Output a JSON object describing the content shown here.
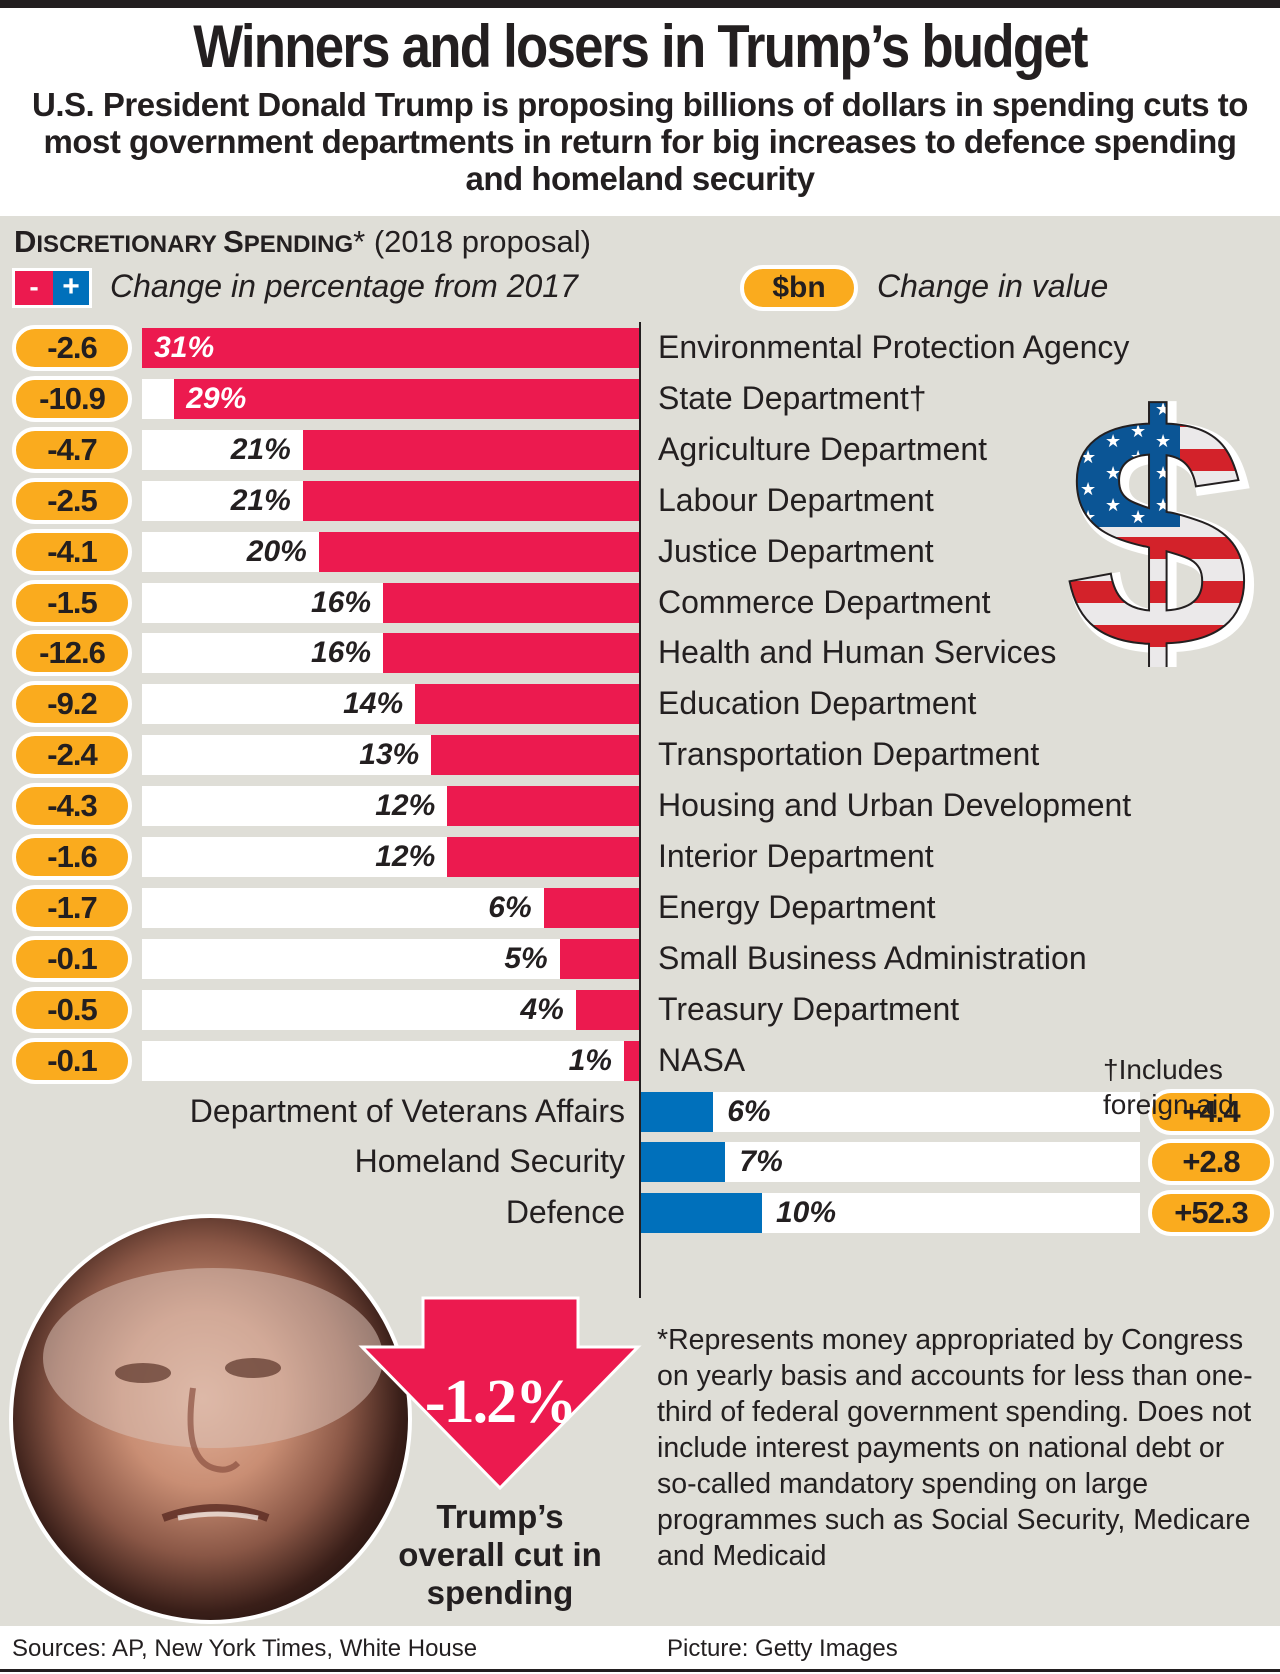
{
  "header": {
    "title": "Winners and losers in Trump’s budget",
    "subtitle": "U.S. President Donald Trump is proposing billions of dollars in spending cuts to most government departments in return for big increases to defence spending and homeland security"
  },
  "section": {
    "heading_d": "D",
    "heading_rest1": "ISCRETIONARY ",
    "heading_s": "S",
    "heading_rest2": "PENDING",
    "heading_suffix": "* (2018 proposal)"
  },
  "legend": {
    "minus": "-",
    "plus": "+",
    "pct_label": "Change in percentage from 2017",
    "value_pill": "$bn",
    "value_label": "Change in value"
  },
  "chart_data": {
    "type": "bar",
    "title": "Discretionary Spending* (2018 proposal)",
    "xlabel": "Change in percentage from 2017",
    "ylabel": "",
    "value_unit": "$bn",
    "series": [
      {
        "name": "Cuts",
        "color": "#ec1a4f",
        "items": [
          {
            "dept": "Environmental Protection Agency",
            "pct": -31,
            "pct_label": "31%",
            "bn": "-2.6"
          },
          {
            "dept": "State Department†",
            "pct": -29,
            "pct_label": "29%",
            "bn": "-10.9"
          },
          {
            "dept": "Agriculture Department",
            "pct": -21,
            "pct_label": "21%",
            "bn": "-4.7"
          },
          {
            "dept": "Labour Department",
            "pct": -21,
            "pct_label": "21%",
            "bn": "-2.5"
          },
          {
            "dept": "Justice Department",
            "pct": -20,
            "pct_label": "20%",
            "bn": "-4.1"
          },
          {
            "dept": "Commerce Department",
            "pct": -16,
            "pct_label": "16%",
            "bn": "-1.5"
          },
          {
            "dept": "Health and Human Services",
            "pct": -16,
            "pct_label": "16%",
            "bn": "-12.6"
          },
          {
            "dept": "Education Department",
            "pct": -14,
            "pct_label": "14%",
            "bn": "-9.2"
          },
          {
            "dept": "Transportation Department",
            "pct": -13,
            "pct_label": "13%",
            "bn": "-2.4"
          },
          {
            "dept": "Housing and Urban Development",
            "pct": -12,
            "pct_label": "12%",
            "bn": "-4.3"
          },
          {
            "dept": "Interior Department",
            "pct": -12,
            "pct_label": "12%",
            "bn": "-1.6"
          },
          {
            "dept": "Energy Department",
            "pct": -6,
            "pct_label": "6%",
            "bn": "-1.7"
          },
          {
            "dept": "Small Business Administration",
            "pct": -5,
            "pct_label": "5%",
            "bn": "-0.1"
          },
          {
            "dept": "Treasury Department",
            "pct": -4,
            "pct_label": "4%",
            "bn": "-0.5"
          },
          {
            "dept": "NASA",
            "pct": -1,
            "pct_label": "1%",
            "bn": "-0.1"
          }
        ]
      },
      {
        "name": "Increases",
        "color": "#0070bb",
        "items": [
          {
            "dept": "Department of Veterans Affairs",
            "pct": 6,
            "pct_label": "6%",
            "bn": "+4.4"
          },
          {
            "dept": "Homeland Security",
            "pct": 7,
            "pct_label": "7%",
            "bn": "+2.8"
          },
          {
            "dept": "Defence",
            "pct": 10,
            "pct_label": "10%",
            "bn": "+52.3"
          }
        ]
      }
    ],
    "overall_change": "-1.2%",
    "overall_label": "Trump’s overall cut in spending"
  },
  "notes": {
    "dagger": "†Includes foreign aid",
    "asterisk": "*Represents money appropriated by Congress on yearly basis and accounts for less than one-third of federal government spending. Does not include interest payments on national debt or so-called mandatory spending on large programmes such as Social Security, Medicare and Medicaid"
  },
  "overall": {
    "value": "-1.2%",
    "label": "Trump’s overall cut in spending"
  },
  "footer": {
    "sources": "Sources: AP, New York Times, White House",
    "picture": "Picture: Getty Images"
  },
  "icons": {
    "dollar": "dollar-flag-icon",
    "photo": "donald-trump-photo"
  },
  "colors": {
    "cut": "#ec1a4f",
    "increase": "#0070bb",
    "pill": "#faab1e",
    "panel": "#dfded7"
  }
}
